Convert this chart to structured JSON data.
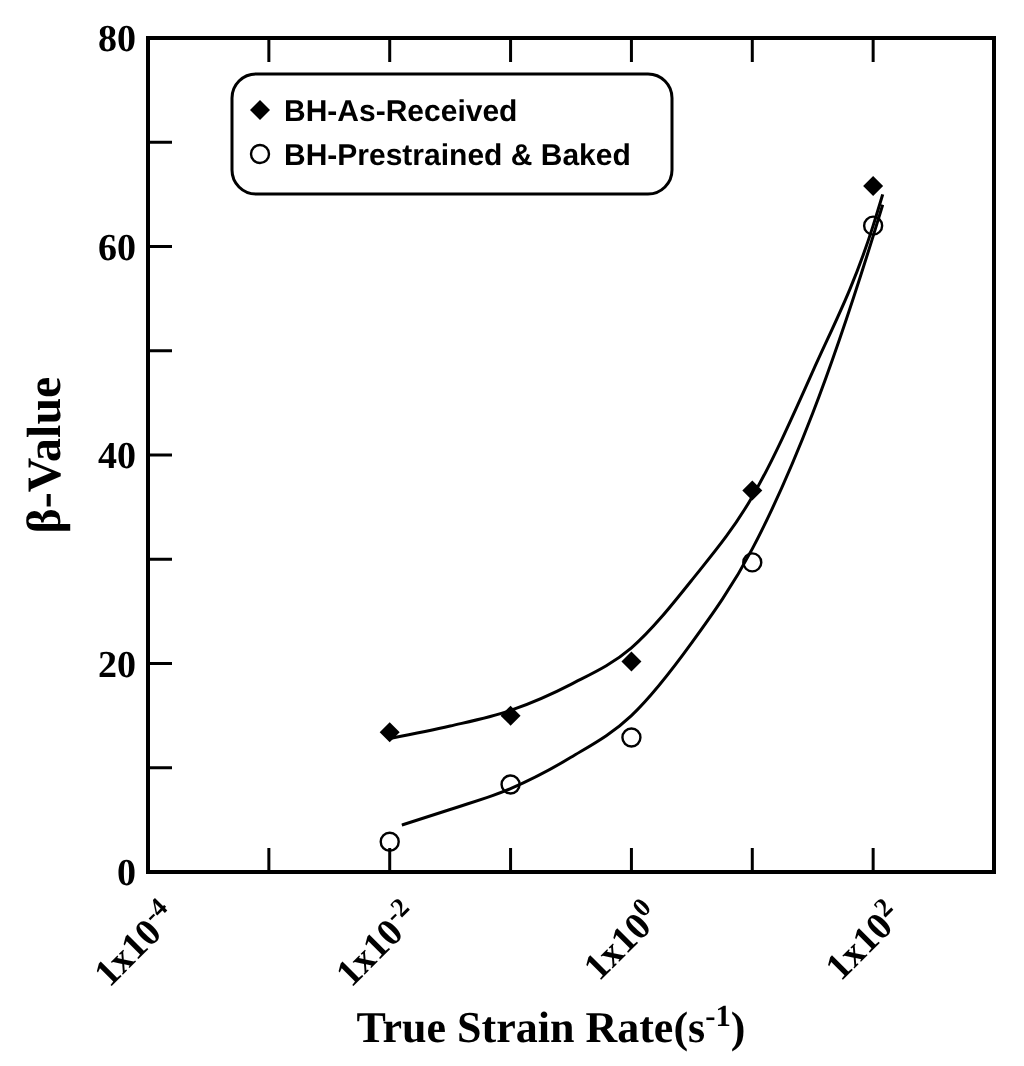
{
  "chart_data": {
    "type": "scatter",
    "xlabel": "True Strain Rate(s$^{-1}$)",
    "ylabel": "β-Value",
    "log": "x",
    "xlim": [
      0.0001,
      1000
    ],
    "ylim": [
      0,
      80
    ],
    "xticks": [
      {
        "value": 0.0001,
        "label": "1x10$^{-4}$"
      },
      {
        "value": 0.001,
        "label": null
      },
      {
        "value": 0.01,
        "label": "1x10$^{-2}$"
      },
      {
        "value": 0.1,
        "label": null
      },
      {
        "value": 1,
        "label": "1x10$^{0}$"
      },
      {
        "value": 10,
        "label": null
      },
      {
        "value": 100,
        "label": "1x10$^{2}$"
      },
      {
        "value": 1000,
        "label": null
      }
    ],
    "yticks": [
      0,
      {
        "value": 10,
        "label": null
      },
      20,
      {
        "value": 30,
        "label": null
      },
      40,
      {
        "value": 50,
        "label": null
      },
      60,
      {
        "value": 70,
        "label": null
      },
      80
    ],
    "grid": false,
    "legend": "top left",
    "series": [
      {
        "name": "BH-As-Received",
        "marker": "diamond",
        "color": "#000000",
        "x": [
          0.01,
          0.1,
          1,
          10,
          100
        ],
        "values": [
          13.4,
          15.0,
          20.2,
          36.6,
          65.8
        ]
      },
      {
        "name": "BH-Prestrained & Baked",
        "marker": "circle",
        "color": "#000000",
        "x": [
          0.01,
          0.1,
          1,
          10,
          100
        ],
        "values": [
          2.9,
          8.4,
          12.9,
          29.7,
          62.0
        ]
      },
      {
        "type": "line",
        "marker": "none",
        "line_style": "solid",
        "color": "#000000",
        "x": [
          0.01,
          0.0316,
          0.1,
          0.316,
          1,
          3.16,
          10,
          31.6,
          100,
          120
        ],
        "values": [
          12.8,
          14.0,
          15.5,
          18.0,
          21.5,
          28.0,
          36.0,
          48.0,
          62.0,
          65.0
        ]
      },
      {
        "type": "line",
        "marker": "none",
        "line_style": "solid",
        "color": "#000000",
        "x": [
          0.0126,
          0.0316,
          0.1,
          0.316,
          1,
          3.16,
          10,
          31.6,
          100,
          120
        ],
        "values": [
          4.5,
          6.0,
          8.0,
          11.0,
          15.0,
          22.0,
          31.0,
          44.0,
          61.0,
          64.0
        ]
      }
    ]
  }
}
